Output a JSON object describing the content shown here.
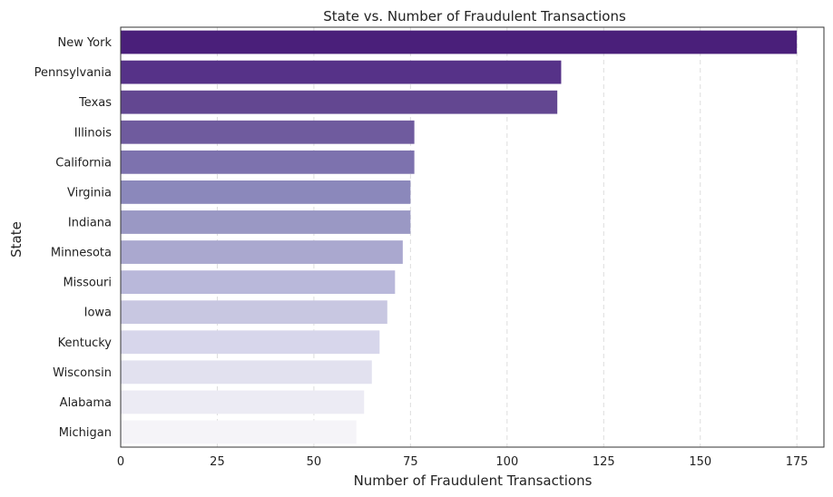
{
  "chart_data": {
    "type": "bar",
    "orientation": "horizontal",
    "title": "State vs. Number of Fraudulent Transactions",
    "xlabel": "Number of Fraudulent Transactions",
    "ylabel": "State",
    "xlim": [
      0,
      182
    ],
    "xticks": [
      0,
      25,
      50,
      75,
      100,
      125,
      150,
      175
    ],
    "grid": "x-dashed",
    "categories": [
      "New York",
      "Pennsylvania",
      "Texas",
      "Illinois",
      "California",
      "Virginia",
      "Indiana",
      "Minnesota",
      "Missouri",
      "Iowa",
      "Kentucky",
      "Wisconsin",
      "Alabama",
      "Michigan"
    ],
    "values": [
      175,
      114,
      113,
      76,
      76,
      75,
      75,
      73,
      71,
      69,
      67,
      65,
      63,
      61
    ],
    "colors": [
      "#4a1f7a",
      "#563288",
      "#634791",
      "#6f5b9e",
      "#7d72ae",
      "#8b88bb",
      "#9a98c4",
      "#aaa8cf",
      "#b9b8da",
      "#c8c7e1",
      "#d7d6eb",
      "#e2e1ef",
      "#ecebf4",
      "#f5f4f8"
    ]
  }
}
